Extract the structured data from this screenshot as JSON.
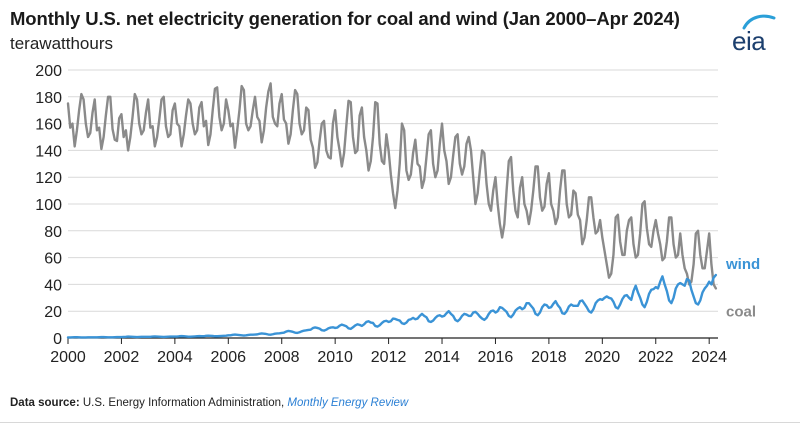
{
  "title": "Monthly U.S. net electricity generation for coal and wind (Jan 2000–Apr 2024)",
  "units_label": "terawatthours",
  "logo_text": "eia",
  "source_label": "Data source:",
  "source_org": "U.S. Energy Information Administration,",
  "source_pub": "Monthly Energy Review",
  "colors": {
    "coal": "#8a8a8a",
    "wind": "#3a93d6",
    "grid": "#d9d9d9",
    "axis": "#222222"
  },
  "chart_data": {
    "type": "line",
    "title": "Monthly U.S. net electricity generation for coal and wind (Jan 2000–Apr 2024)",
    "ylabel": "terawatthours",
    "xlabel": "",
    "ylim": [
      0,
      200
    ],
    "xlim": [
      2000,
      2024.33
    ],
    "y_ticks": [
      0,
      20,
      40,
      60,
      80,
      100,
      120,
      140,
      160,
      180,
      200
    ],
    "x_ticks": [
      "2000",
      "2002",
      "2004",
      "2006",
      "2008",
      "2010",
      "2012",
      "2014",
      "2016",
      "2018",
      "2020",
      "2022",
      "2024"
    ],
    "grid": "horizontal",
    "legend": "direct labels at right end of lines",
    "series": [
      {
        "name": "coal",
        "annual_profile": [
          [
            2000,
            175,
            157,
            160,
            143,
            155,
            170,
            182,
            178,
            160,
            150,
            153,
            168
          ],
          [
            2001,
            178,
            155,
            157,
            141,
            150,
            166,
            180,
            180,
            156,
            148,
            147,
            164
          ],
          [
            2002,
            167,
            150,
            155,
            140,
            150,
            165,
            182,
            178,
            160,
            152,
            155,
            168
          ],
          [
            2003,
            178,
            157,
            158,
            143,
            150,
            163,
            178,
            180,
            158,
            150,
            152,
            170
          ],
          [
            2004,
            175,
            160,
            158,
            143,
            152,
            166,
            178,
            175,
            160,
            152,
            155,
            172
          ],
          [
            2005,
            176,
            158,
            162,
            144,
            152,
            170,
            186,
            187,
            165,
            155,
            160,
            178
          ],
          [
            2006,
            170,
            158,
            160,
            142,
            155,
            170,
            188,
            185,
            160,
            155,
            158,
            170
          ],
          [
            2007,
            180,
            165,
            162,
            146,
            155,
            172,
            184,
            190,
            165,
            160,
            158,
            175
          ],
          [
            2008,
            182,
            163,
            160,
            145,
            152,
            170,
            185,
            182,
            160,
            152,
            155,
            172
          ],
          [
            2009,
            170,
            148,
            142,
            127,
            131,
            147,
            160,
            162,
            140,
            135,
            134,
            160
          ],
          [
            2010,
            170,
            150,
            140,
            128,
            138,
            158,
            177,
            176,
            150,
            138,
            140,
            166
          ],
          [
            2011,
            172,
            150,
            140,
            125,
            132,
            150,
            176,
            175,
            145,
            132,
            130,
            152
          ],
          [
            2012,
            140,
            122,
            108,
            97,
            110,
            130,
            160,
            155,
            125,
            118,
            122,
            138
          ],
          [
            2013,
            148,
            130,
            128,
            112,
            118,
            135,
            152,
            155,
            130,
            120,
            125,
            145
          ],
          [
            2014,
            160,
            140,
            132,
            115,
            120,
            136,
            150,
            152,
            130,
            122,
            128,
            145
          ],
          [
            2015,
            150,
            140,
            120,
            100,
            108,
            125,
            140,
            138,
            115,
            100,
            95,
            110
          ],
          [
            2016,
            120,
            100,
            85,
            75,
            85,
            110,
            132,
            135,
            110,
            95,
            90,
            112
          ],
          [
            2017,
            120,
            100,
            95,
            85,
            95,
            110,
            128,
            128,
            105,
            95,
            98,
            115
          ],
          [
            2018,
            123,
            100,
            95,
            85,
            90,
            110,
            125,
            125,
            100,
            90,
            92,
            110
          ],
          [
            2019,
            108,
            92,
            88,
            70,
            75,
            88,
            105,
            105,
            90,
            78,
            80,
            88
          ],
          [
            2020,
            75,
            65,
            55,
            45,
            48,
            62,
            90,
            92,
            72,
            62,
            62,
            80
          ],
          [
            2021,
            88,
            90,
            70,
            60,
            62,
            78,
            100,
            102,
            82,
            70,
            68,
            80
          ],
          [
            2022,
            88,
            78,
            70,
            58,
            60,
            72,
            90,
            90,
            70,
            60,
            62,
            78
          ],
          [
            2023,
            62,
            52,
            48,
            40,
            42,
            55,
            78,
            80,
            62,
            52,
            52,
            65
          ],
          [
            2024,
            78,
            55,
            40,
            37
          ]
        ]
      },
      {
        "name": "wind",
        "annual_profile": [
          [
            2000,
            0.4,
            0.4,
            0.5,
            0.6,
            0.6,
            0.5,
            0.4,
            0.4,
            0.4,
            0.5,
            0.5,
            0.5
          ],
          [
            2001,
            0.5,
            0.5,
            0.6,
            0.7,
            0.7,
            0.6,
            0.5,
            0.5,
            0.5,
            0.6,
            0.7,
            0.7
          ],
          [
            2002,
            0.7,
            0.8,
            0.9,
            1.1,
            1.0,
            0.9,
            0.8,
            0.7,
            0.8,
            0.9,
            0.9,
            0.9
          ],
          [
            2003,
            0.9,
            0.9,
            1.1,
            1.2,
            1.1,
            1.0,
            0.9,
            0.8,
            0.9,
            1.0,
            1.1,
            1.1
          ],
          [
            2004,
            1.1,
            1.1,
            1.3,
            1.4,
            1.3,
            1.2,
            1.0,
            1.0,
            1.1,
            1.2,
            1.3,
            1.4
          ],
          [
            2005,
            1.3,
            1.3,
            1.6,
            1.7,
            1.6,
            1.5,
            1.3,
            1.3,
            1.4,
            1.5,
            1.6,
            1.7
          ],
          [
            2006,
            2.0,
            2.0,
            2.4,
            2.6,
            2.4,
            2.2,
            2.0,
            1.8,
            2.0,
            2.3,
            2.5,
            2.5
          ],
          [
            2007,
            2.6,
            2.7,
            3.1,
            3.4,
            3.2,
            3.0,
            2.6,
            2.5,
            2.8,
            3.2,
            3.4,
            3.5
          ],
          [
            2008,
            3.8,
            4.0,
            4.8,
            5.3,
            5.0,
            4.6,
            4.0,
            3.8,
            4.3,
            5.0,
            5.5,
            5.7
          ],
          [
            2009,
            6.0,
            6.2,
            7.4,
            7.9,
            7.5,
            7.0,
            5.8,
            5.5,
            6.2,
            7.3,
            7.8,
            8.0
          ],
          [
            2010,
            7.5,
            7.8,
            9.2,
            10.0,
            9.4,
            8.8,
            7.2,
            6.8,
            8.0,
            9.4,
            10.2,
            9.8
          ],
          [
            2011,
            9.0,
            10.2,
            12.0,
            12.5,
            11.5,
            11.2,
            9.0,
            8.5,
            9.5,
            11.2,
            12.5,
            12.8
          ],
          [
            2012,
            12.0,
            12.5,
            14.5,
            14.2,
            13.5,
            13.0,
            11.0,
            10.5,
            11.5,
            13.5,
            14.0,
            15.0
          ],
          [
            2013,
            14.0,
            14.5,
            16.5,
            18.0,
            16.5,
            15.5,
            12.5,
            12.0,
            13.0,
            15.0,
            16.5,
            17.0
          ],
          [
            2014,
            16.0,
            16.5,
            18.5,
            20.0,
            18.0,
            16.5,
            13.5,
            12.5,
            14.0,
            16.5,
            18.0,
            17.5
          ],
          [
            2015,
            16.5,
            16.5,
            19.0,
            19.5,
            18.0,
            16.0,
            14.5,
            13.5,
            15.0,
            18.0,
            20.0,
            20.5
          ],
          [
            2016,
            19.0,
            20.0,
            23.0,
            22.5,
            21.0,
            19.5,
            16.5,
            15.5,
            17.5,
            20.5,
            22.0,
            23.0
          ],
          [
            2017,
            21.5,
            22.5,
            26.0,
            26.0,
            24.0,
            22.0,
            18.0,
            17.0,
            19.0,
            23.0,
            25.0,
            24.5
          ],
          [
            2018,
            22.5,
            23.0,
            25.5,
            27.5,
            24.5,
            22.5,
            18.5,
            18.0,
            20.0,
            23.5,
            25.0,
            24.0
          ],
          [
            2019,
            24.0,
            24.0,
            27.5,
            28.0,
            25.5,
            23.0,
            20.0,
            19.0,
            21.5,
            26.0,
            28.0,
            29.0
          ],
          [
            2020,
            28.5,
            30.0,
            31.0,
            30.0,
            29.5,
            27.0,
            23.0,
            22.0,
            25.0,
            29.0,
            31.5,
            32.0
          ],
          [
            2021,
            30.0,
            28.5,
            35.0,
            39.0,
            34.0,
            30.0,
            25.0,
            23.0,
            27.0,
            33.0,
            36.0,
            36.5
          ],
          [
            2022,
            38.0,
            37.0,
            42.0,
            46.0,
            40.0,
            35.0,
            28.0,
            26.0,
            30.0,
            37.0,
            40.0,
            41.0
          ],
          [
            2023,
            40.0,
            39.0,
            44.0,
            43.0,
            36.0,
            31.0,
            26.0,
            25.0,
            28.0,
            34.0,
            37.0,
            39.0
          ],
          [
            2024,
            42.0,
            40.0,
            45.0,
            47.0
          ]
        ]
      }
    ]
  }
}
